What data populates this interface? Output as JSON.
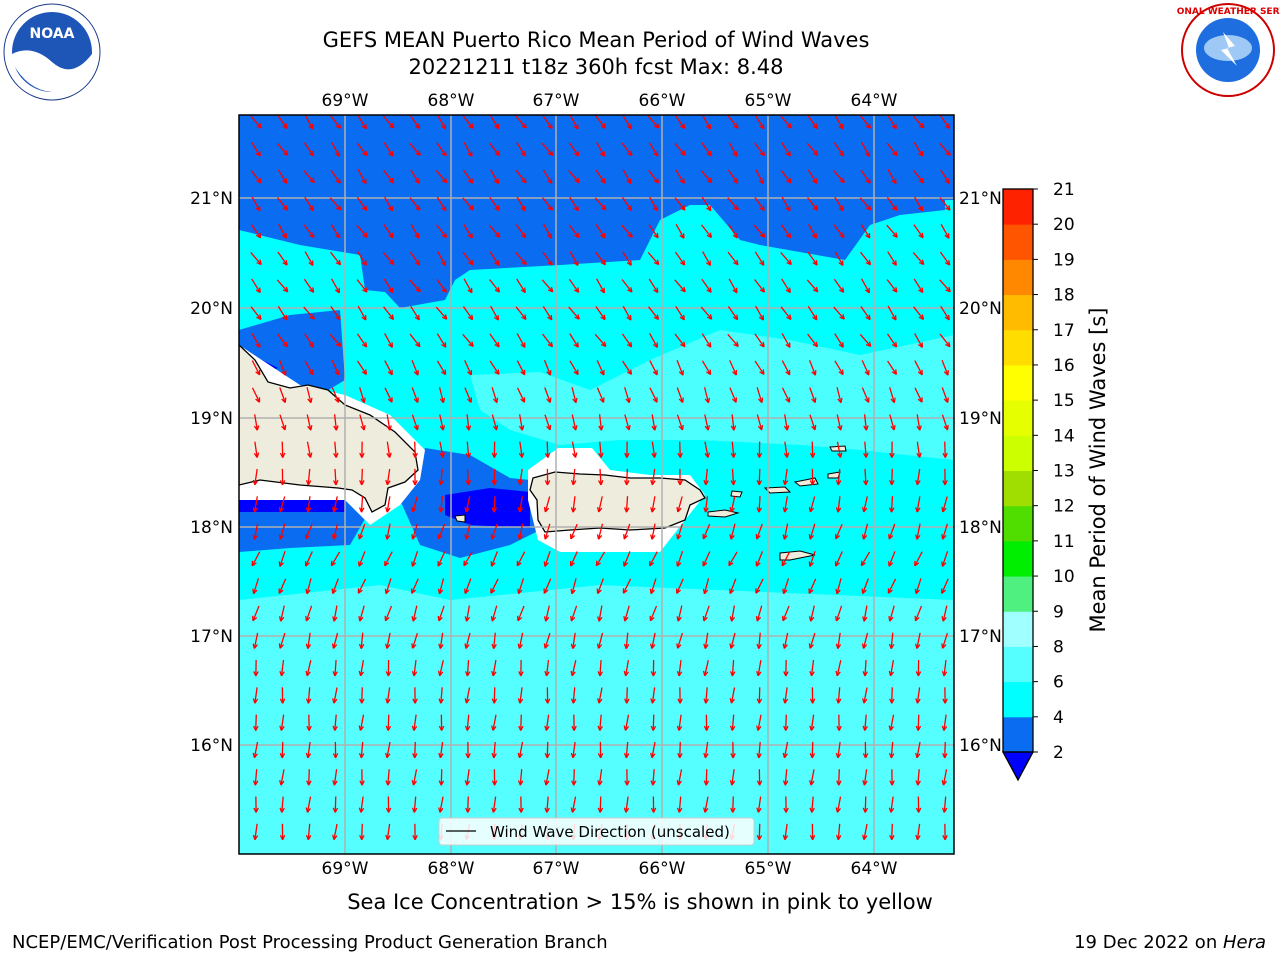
{
  "header": {
    "title_line1": "GEFS MEAN Puerto Rico Mean Period of Wind Waves",
    "title_line2": "20221211 t18z 360h fcst   Max: 8.48"
  },
  "logos": {
    "left": {
      "icon": "noaa-logo",
      "text": "NOAA"
    },
    "right": {
      "icon": "nws-logo",
      "text": "NATIONAL WEATHER SERVICE"
    }
  },
  "map": {
    "lon_labels": [
      "69°W",
      "68°W",
      "67°W",
      "66°W",
      "65°W",
      "64°W"
    ],
    "lat_labels": [
      "21°N",
      "20°N",
      "19°N",
      "18°N",
      "17°N",
      "16°N"
    ],
    "legend_label": "Wind Wave Direction (unscaled)",
    "arrow_color": "#ff0000",
    "land_color": "#eeecdc"
  },
  "colorbar": {
    "label": "Mean Period of Wind Waves [s]",
    "ticks": [
      "2",
      "4",
      "6",
      "8",
      "9",
      "10",
      "11",
      "12",
      "13",
      "14",
      "15",
      "16",
      "17",
      "18",
      "19",
      "20",
      "21"
    ],
    "colors": [
      "#0a6cf0",
      "#00ffff",
      "#55ffff",
      "#a0ffff",
      "#50f080",
      "#00ee00",
      "#50dd00",
      "#a0dd00",
      "#ccff00",
      "#e5ff00",
      "#ffff00",
      "#ffdd00",
      "#ffbb00",
      "#ff8800",
      "#ff5500",
      "#ff2200",
      "#ff0000"
    ],
    "under_color": "#0000ff"
  },
  "subtitle": "Sea Ice Concentration > 15% is shown in pink to yellow",
  "footer": {
    "left": "NCEP/EMC/Verification Post Processing Product Generation Branch",
    "right_date": "19 Dec 2022 on ",
    "right_host": "Hera"
  }
}
